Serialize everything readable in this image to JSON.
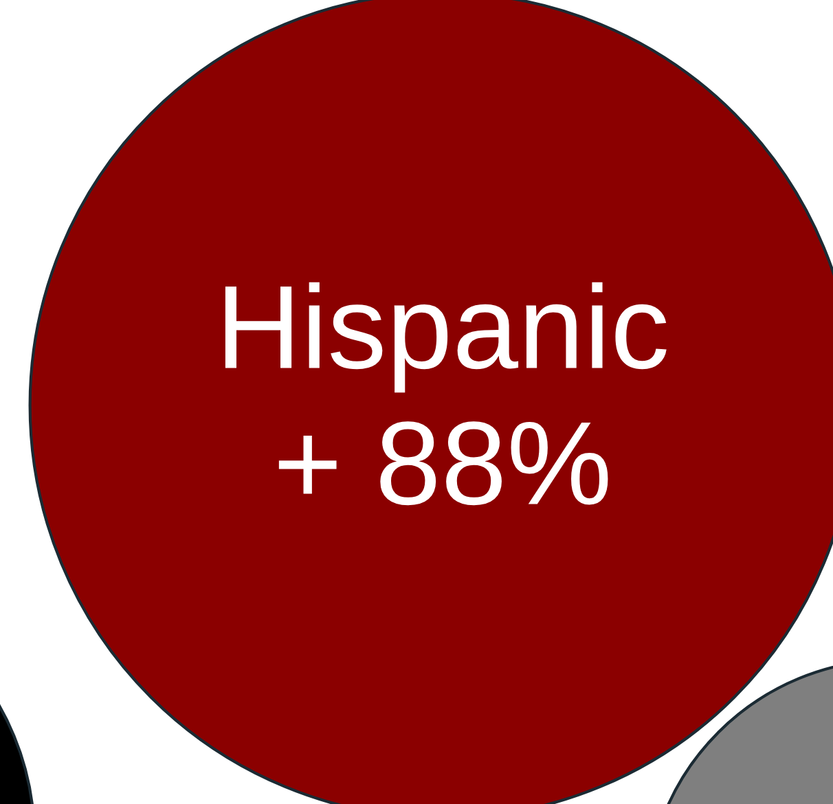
{
  "chart_data": {
    "type": "other",
    "categories": [
      "Hispanic",
      null,
      null
    ],
    "values": [
      88,
      null,
      null
    ],
    "value_labels": [
      "+ 88%",
      null,
      null
    ],
    "colors": [
      "#8b0000",
      "#000000",
      "#7f7f7f"
    ]
  }
}
